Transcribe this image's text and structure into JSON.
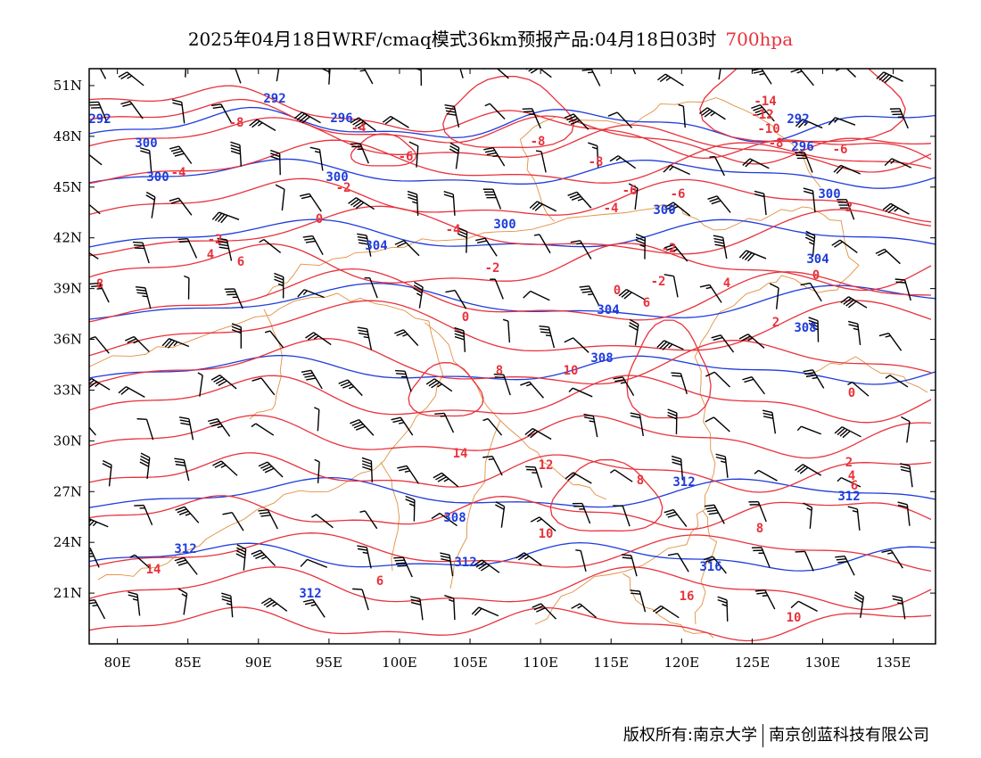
{
  "title": {
    "main": "2025年04月18日WRF/cmaq模式36km预报产品:04月18日03时",
    "level": "700hpa",
    "level_color": "#e8323c"
  },
  "axes": {
    "x_ticks": [
      "80E",
      "85E",
      "90E",
      "95E",
      "100E",
      "105E",
      "110E",
      "115E",
      "120E",
      "125E",
      "130E",
      "135E"
    ],
    "y_ticks": [
      "51N",
      "48N",
      "45N",
      "42N",
      "39N",
      "36N",
      "33N",
      "30N",
      "27N",
      "24N",
      "21N"
    ],
    "lon_range": [
      78,
      138
    ],
    "lat_range": [
      18,
      52
    ]
  },
  "colors": {
    "temperature_contour": "#e8323c",
    "height_contour": "#1e3cdc",
    "border": "#e09040",
    "wind_barb": "#000000"
  },
  "temperature_labels": [
    "-14",
    "-12",
    "-10",
    "-8",
    "-6",
    "-4",
    "-2",
    "0",
    "2",
    "4",
    "6",
    "8",
    "10",
    "12",
    "14"
  ],
  "height_labels": [
    "292",
    "296",
    "300",
    "304",
    "308",
    "312",
    "316"
  ],
  "copyright": {
    "left": "版权所有:南京大学",
    "right": "南京创蓝科技有限公司"
  }
}
